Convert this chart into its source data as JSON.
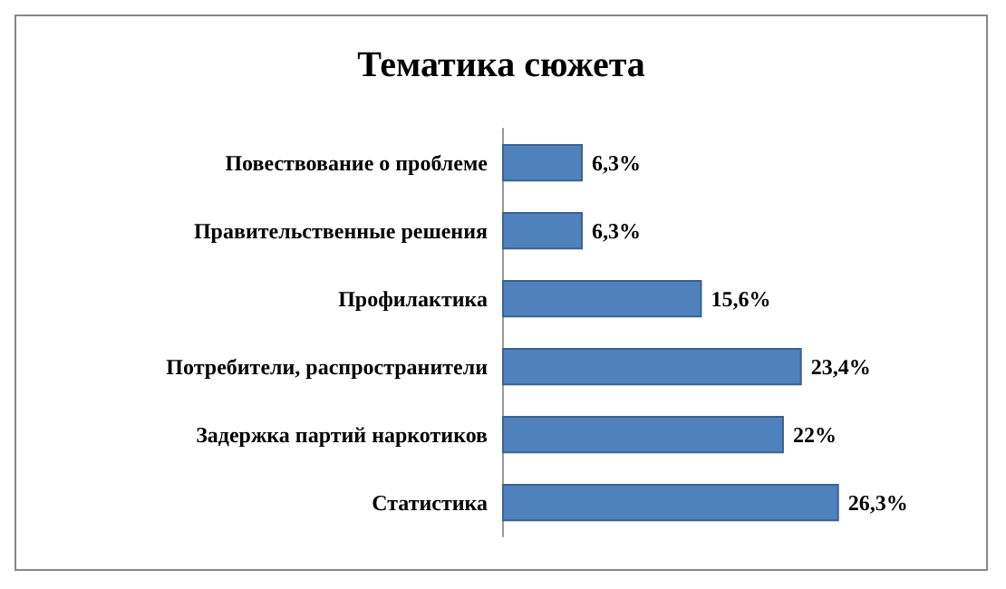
{
  "chart_data": {
    "type": "bar",
    "orientation": "horizontal",
    "title": "Тематика сюжета",
    "categories": [
      "Повествование о проблеме",
      "Правительственные решения",
      "Профилактика",
      "Потребители, распространители",
      "Задержка партий наркотиков",
      "Статистика"
    ],
    "values": [
      6.3,
      6.3,
      15.6,
      23.4,
      22,
      26.3
    ],
    "value_labels": [
      "6,3%",
      "6,3%",
      "15,6%",
      "23,4%",
      "22%",
      "26,3%"
    ],
    "color": "#4f81bd"
  }
}
